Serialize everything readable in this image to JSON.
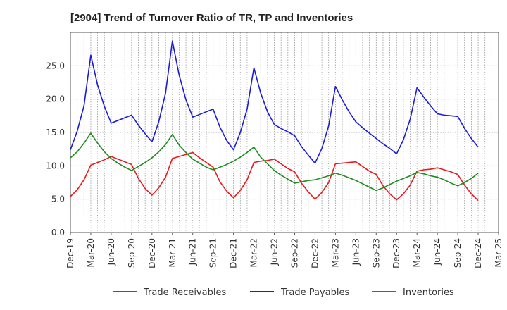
{
  "chart_data": {
    "type": "line",
    "title": "[2904]  Trend of Turnover Ratio of TR, TP and Inventories",
    "xlabel": "",
    "ylabel": "",
    "ylim": [
      0,
      30
    ],
    "yticks": [
      "0.0",
      "5.0",
      "10.0",
      "15.0",
      "20.0",
      "25.0"
    ],
    "ytick_values": [
      0,
      5,
      10,
      15,
      20,
      25
    ],
    "xtick_labels": [
      "Dec-19",
      "Mar-20",
      "Jun-20",
      "Sep-20",
      "Dec-20",
      "Mar-21",
      "Jun-21",
      "Sep-21",
      "Dec-21",
      "Mar-22",
      "Jun-22",
      "Sep-22",
      "Dec-22",
      "Mar-23",
      "Jun-23",
      "Sep-23",
      "Dec-23",
      "Mar-24",
      "Jun-24",
      "Sep-24",
      "Dec-24",
      "Mar-25"
    ],
    "x": [
      "Dec-19",
      "Jan-20",
      "Feb-20",
      "Mar-20",
      "Apr-20",
      "May-20",
      "Jun-20",
      "Jul-20",
      "Aug-20",
      "Sep-20",
      "Oct-20",
      "Nov-20",
      "Dec-20",
      "Jan-21",
      "Feb-21",
      "Mar-21",
      "Apr-21",
      "May-21",
      "Jun-21",
      "Jul-21",
      "Aug-21",
      "Sep-21",
      "Oct-21",
      "Nov-21",
      "Dec-21",
      "Jan-22",
      "Feb-22",
      "Mar-22",
      "Apr-22",
      "May-22",
      "Jun-22",
      "Jul-22",
      "Aug-22",
      "Sep-22",
      "Oct-22",
      "Nov-22",
      "Dec-22",
      "Jan-23",
      "Feb-23",
      "Mar-23",
      "Apr-23",
      "May-23",
      "Jun-23",
      "Jul-23",
      "Aug-23",
      "Sep-23",
      "Oct-23",
      "Nov-23",
      "Dec-23",
      "Jan-24",
      "Feb-24",
      "Mar-24",
      "Apr-24",
      "May-24",
      "Jun-24",
      "Jul-24",
      "Aug-24",
      "Sep-24",
      "Oct-24",
      "Nov-24",
      "Dec-24"
    ],
    "grid": true,
    "legend_position": "bottom",
    "series": [
      {
        "name": "Trade Receivables",
        "color": "#e8191c",
        "values": [
          5.4,
          6.4,
          7.9,
          10.1,
          10.5,
          10.9,
          11.4,
          11.0,
          10.6,
          10.2,
          8.1,
          6.6,
          5.6,
          6.7,
          8.3,
          11.1,
          11.4,
          11.7,
          12.0,
          11.2,
          10.5,
          9.8,
          7.6,
          6.2,
          5.2,
          6.3,
          7.9,
          10.5,
          10.7,
          10.8,
          11.0,
          10.3,
          9.6,
          9.1,
          7.4,
          6.1,
          5.0,
          6.0,
          7.5,
          10.3,
          10.4,
          10.5,
          10.6,
          9.9,
          9.2,
          8.7,
          7.0,
          5.8,
          4.9,
          5.8,
          7.1,
          9.2,
          9.4,
          9.5,
          9.7,
          9.4,
          9.1,
          8.7,
          7.1,
          5.8,
          4.8
        ]
      },
      {
        "name": "Trade Payables",
        "color": "#1a1adc",
        "values": [
          12.4,
          15.2,
          19.0,
          26.6,
          22.1,
          18.9,
          16.4,
          16.8,
          17.2,
          17.6,
          16.1,
          14.8,
          13.6,
          16.6,
          20.9,
          28.7,
          23.6,
          19.9,
          17.3,
          17.7,
          18.1,
          18.5,
          15.8,
          13.8,
          12.4,
          15.0,
          18.5,
          24.7,
          20.9,
          18.1,
          16.2,
          15.6,
          15.1,
          14.5,
          12.9,
          11.6,
          10.4,
          12.6,
          16.0,
          21.9,
          19.9,
          18.1,
          16.6,
          15.7,
          14.9,
          14.1,
          13.3,
          12.6,
          11.8,
          13.9,
          17.0,
          21.7,
          20.3,
          19.0,
          17.8,
          17.6,
          17.5,
          17.4,
          15.6,
          14.1,
          12.8
        ]
      },
      {
        "name": "Inventories",
        "color": "#1e8c1e",
        "values": [
          11.2,
          12.1,
          13.4,
          14.9,
          13.4,
          12.1,
          11.1,
          10.4,
          9.8,
          9.3,
          9.9,
          10.5,
          11.2,
          12.1,
          13.2,
          14.7,
          13.1,
          12.0,
          11.0,
          10.4,
          9.8,
          9.4,
          9.8,
          10.2,
          10.7,
          11.3,
          12.0,
          12.8,
          11.3,
          10.3,
          9.3,
          8.6,
          8.0,
          7.4,
          7.6,
          7.8,
          7.9,
          8.2,
          8.5,
          8.9,
          8.6,
          8.2,
          7.8,
          7.3,
          6.8,
          6.3,
          6.7,
          7.2,
          7.7,
          8.1,
          8.5,
          9.0,
          8.8,
          8.5,
          8.3,
          7.9,
          7.4,
          7.0,
          7.5,
          8.1,
          8.9
        ]
      }
    ]
  }
}
